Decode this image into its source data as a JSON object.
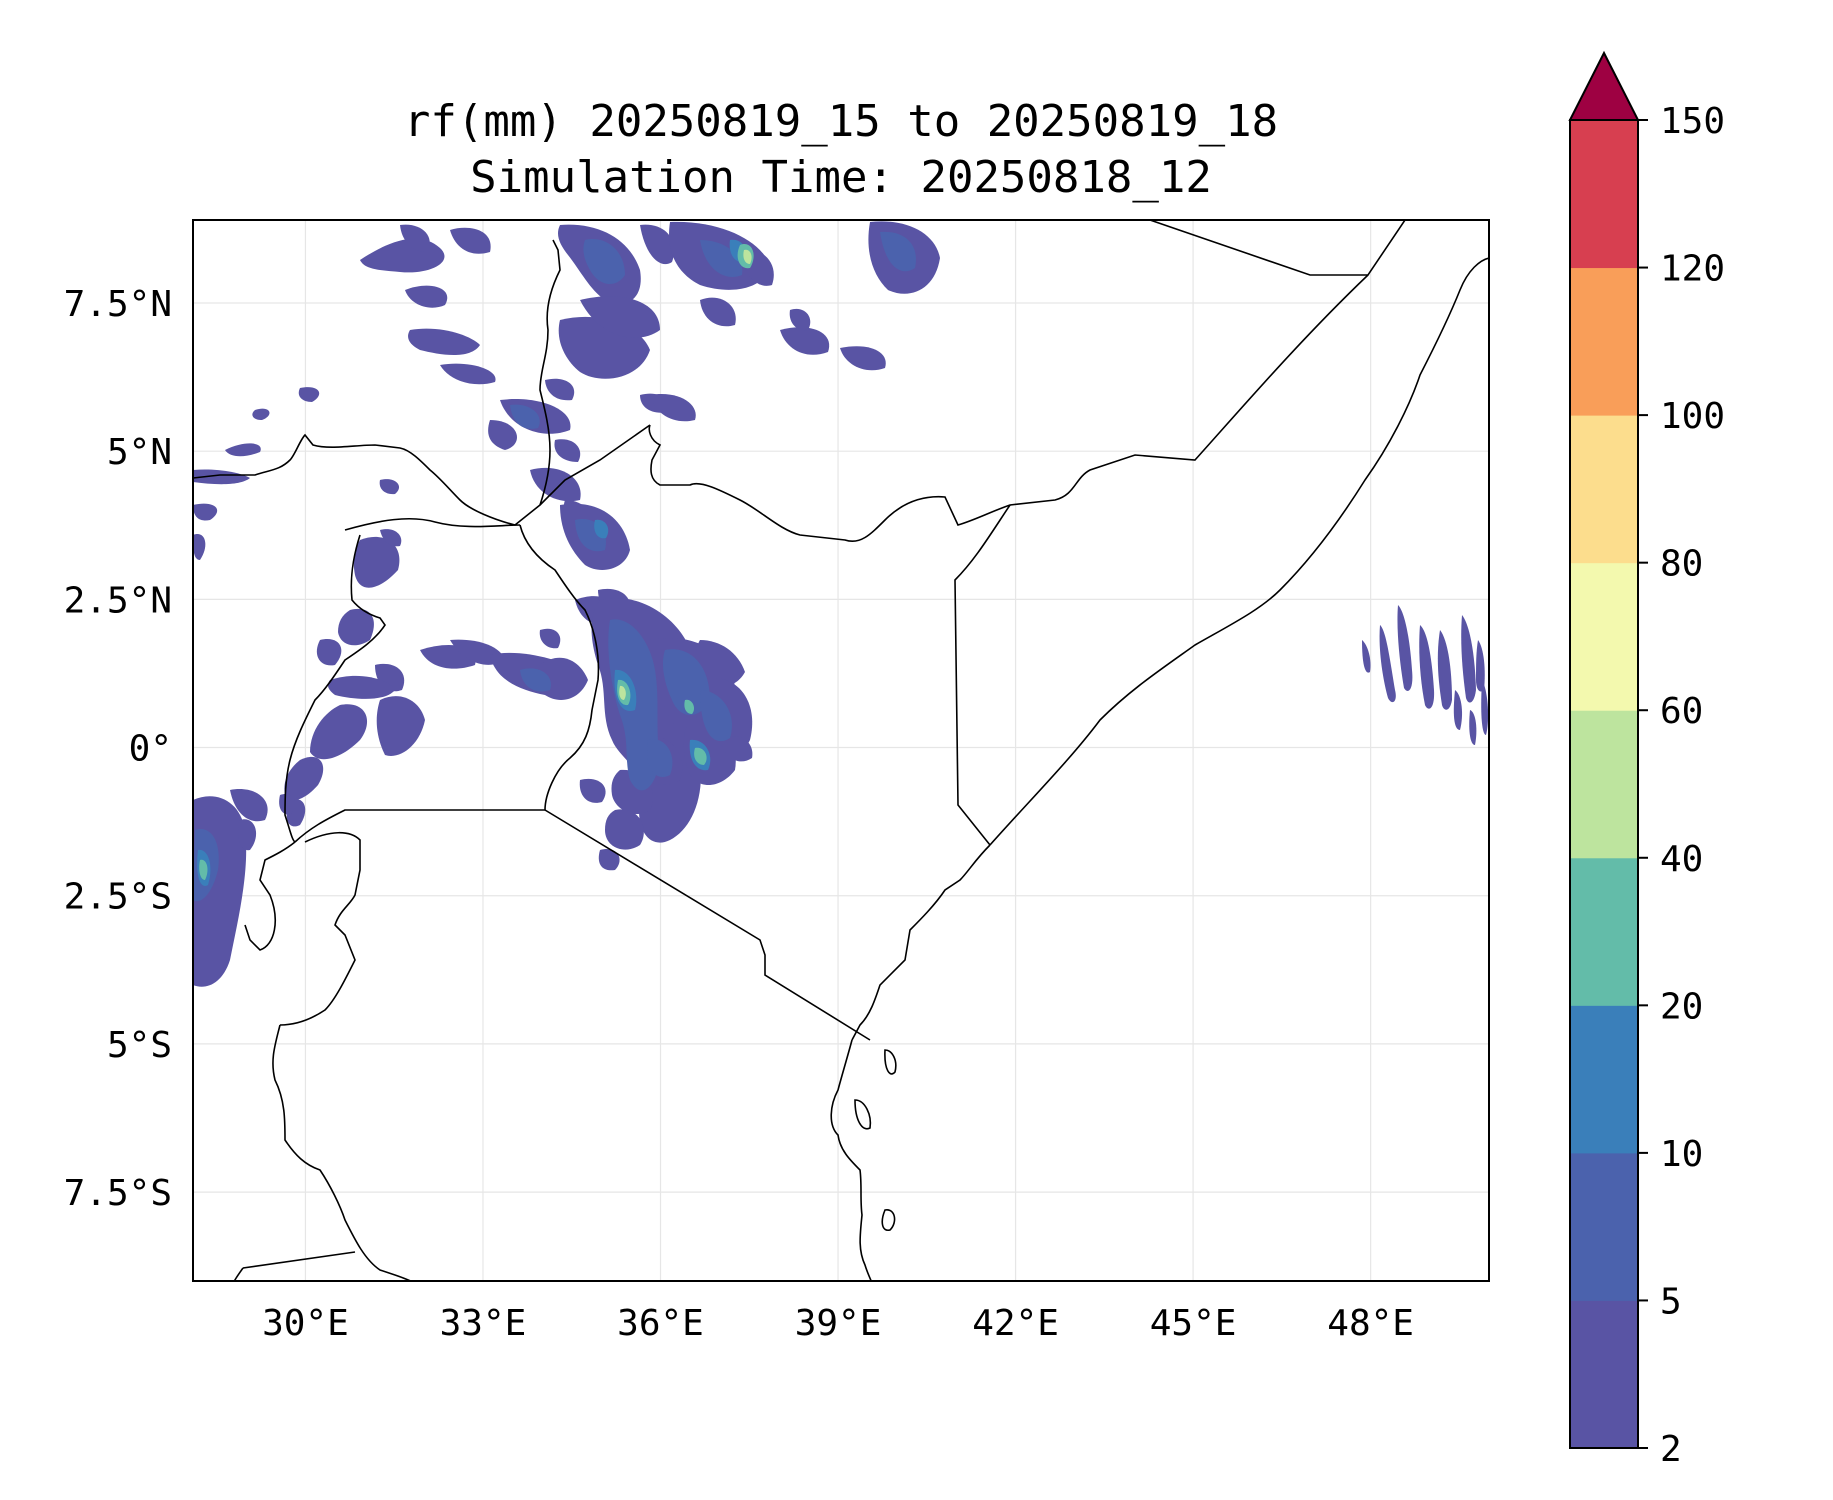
{
  "title": {
    "line1": "rf(mm) 20250819_15 to 20250819_18",
    "line2": "Simulation Time: 20250818_12"
  },
  "map": {
    "lon_range": [
      28.1,
      50.0
    ],
    "lat_range": [
      -9.0,
      8.9
    ],
    "lon_ticks": [
      {
        "value": 30,
        "label": "30°E"
      },
      {
        "value": 33,
        "label": "33°E"
      },
      {
        "value": 36,
        "label": "36°E"
      },
      {
        "value": 39,
        "label": "39°E"
      },
      {
        "value": 42,
        "label": "42°E"
      },
      {
        "value": 45,
        "label": "45°E"
      },
      {
        "value": 48,
        "label": "48°E"
      }
    ],
    "lat_ticks": [
      {
        "value": 7.5,
        "label": "7.5°N"
      },
      {
        "value": 5,
        "label": "5°N"
      },
      {
        "value": 2.5,
        "label": "2.5°N"
      },
      {
        "value": 0,
        "label": "0°"
      },
      {
        "value": -2.5,
        "label": "2.5°S"
      },
      {
        "value": -5,
        "label": "5°S"
      },
      {
        "value": -7.5,
        "label": "7.5°S"
      }
    ],
    "gridlines": true,
    "borders_color": "#000000",
    "rain_colors": {
      "c2": "#5954a4",
      "c5": "#4b62ad",
      "c10": "#3a7fba",
      "c20": "#63bca9",
      "c40": "#bde49e"
    }
  },
  "colorbar": {
    "levels": [
      {
        "value": 2,
        "label": "2"
      },
      {
        "value": 5,
        "label": "5"
      },
      {
        "value": 10,
        "label": "10"
      },
      {
        "value": 20,
        "label": "20"
      },
      {
        "value": 40,
        "label": "40"
      },
      {
        "value": 60,
        "label": "60"
      },
      {
        "value": 80,
        "label": "80"
      },
      {
        "value": 100,
        "label": "100"
      },
      {
        "value": 120,
        "label": "120"
      },
      {
        "value": 150,
        "label": "150"
      }
    ],
    "colors": [
      "#5954a4",
      "#4b62ad",
      "#3a7fba",
      "#63bca9",
      "#bde49e",
      "#f3f9ae",
      "#fcdd8d",
      "#f99e59",
      "#d73f50"
    ],
    "extend_color": "#9e0142",
    "extend": "max"
  }
}
